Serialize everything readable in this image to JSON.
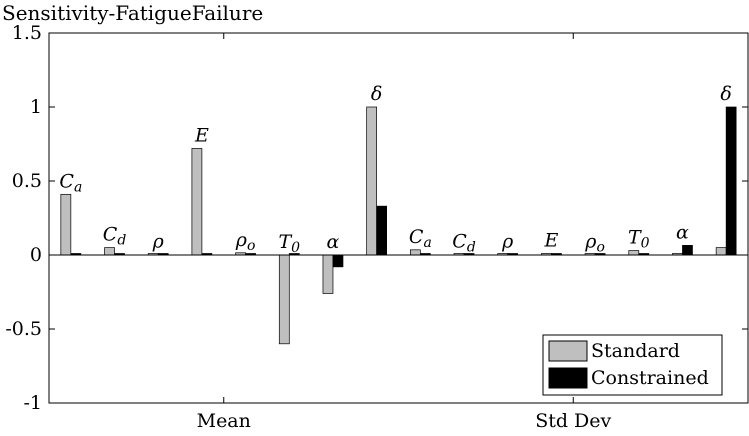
{
  "chart_data": {
    "type": "bar",
    "title": "Sensitivity-FatigueFailure",
    "ylim": [
      -1,
      1.5
    ],
    "y_ticks": [
      "1.5",
      "1",
      "0.5",
      "0",
      "-0.5",
      "-1"
    ],
    "y_tick_values": [
      1.5,
      1,
      0.5,
      0,
      -0.5,
      -1
    ],
    "group_labels": [
      "Mean",
      "Std Dev"
    ],
    "categories": [
      {
        "base": "C",
        "sub": "a",
        "group": "Mean"
      },
      {
        "base": "C",
        "sub": "d",
        "group": "Mean"
      },
      {
        "base": "ρ",
        "sub": "",
        "group": "Mean"
      },
      {
        "base": "E",
        "sub": "",
        "group": "Mean"
      },
      {
        "base": "ρ",
        "sub": "o",
        "group": "Mean"
      },
      {
        "base": "T",
        "sub": "0",
        "group": "Mean"
      },
      {
        "base": "α",
        "sub": "",
        "group": "Mean"
      },
      {
        "base": "δ",
        "sub": "",
        "group": "Mean"
      },
      {
        "base": "C",
        "sub": "a",
        "group": "Std Dev"
      },
      {
        "base": "C",
        "sub": "d",
        "group": "Std Dev"
      },
      {
        "base": "ρ",
        "sub": "",
        "group": "Std Dev"
      },
      {
        "base": "E",
        "sub": "",
        "group": "Std Dev"
      },
      {
        "base": "ρ",
        "sub": "o",
        "group": "Std Dev"
      },
      {
        "base": "T",
        "sub": "0",
        "group": "Std Dev"
      },
      {
        "base": "α",
        "sub": "",
        "group": "Std Dev"
      },
      {
        "base": "δ",
        "sub": "",
        "group": "Std Dev"
      }
    ],
    "series": [
      {
        "name": "Standard",
        "color": "#bfbfbf",
        "values": [
          0.41,
          0.05,
          0.005,
          0.72,
          0.015,
          -0.6,
          -0.26,
          1.0,
          0.035,
          0.005,
          0.0,
          0.01,
          0.005,
          0.03,
          0.005,
          0.05
        ]
      },
      {
        "name": "Constrained",
        "color": "#000000",
        "values": [
          0.005,
          0.0,
          0.005,
          0.0,
          0.0,
          0.0,
          -0.08,
          0.33,
          0.0,
          0.005,
          0.005,
          0.005,
          0.005,
          0.0,
          0.065,
          1.0
        ]
      }
    ],
    "legend": {
      "position": "bottom-right"
    },
    "grid": false
  }
}
